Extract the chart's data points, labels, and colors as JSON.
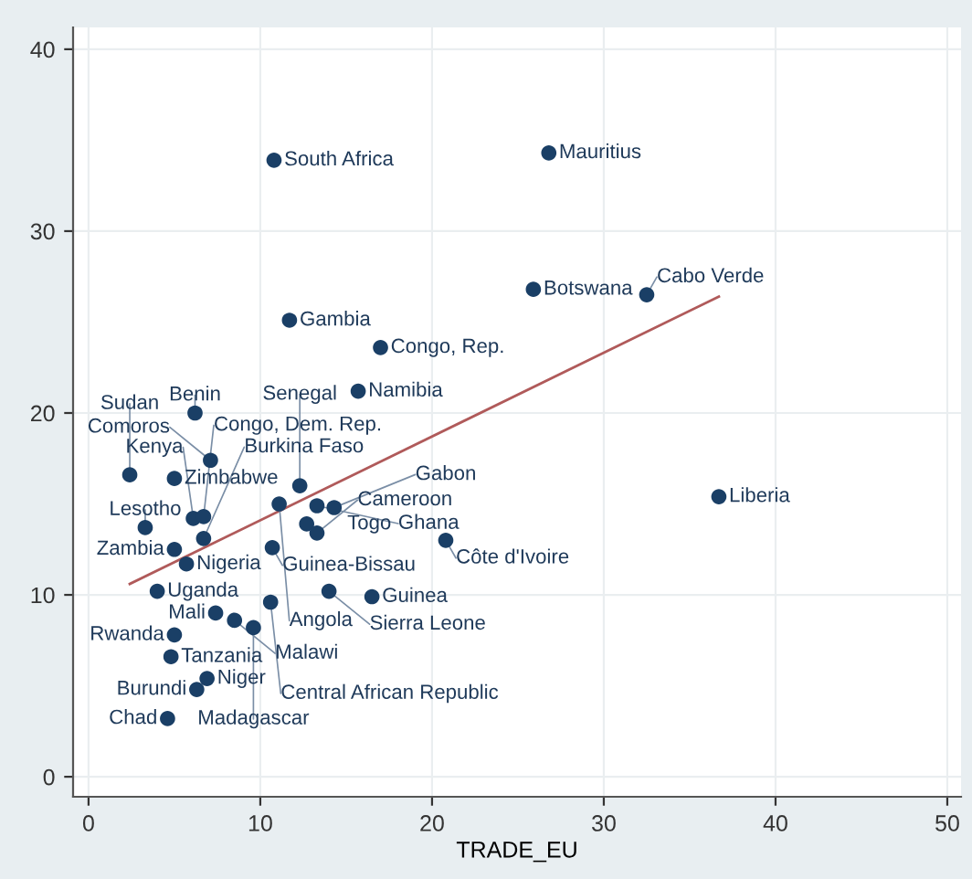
{
  "chart_data": {
    "type": "scatter",
    "xlabel": "TRADE_EU",
    "xlim": [
      -0.9,
      50.8
    ],
    "ylim": [
      -1.1,
      41.2
    ],
    "xticks": [
      0,
      10,
      20,
      30,
      40,
      50
    ],
    "yticks": [
      0,
      10,
      20,
      30,
      40
    ],
    "grid": true,
    "marker": "circle",
    "series": [
      {
        "color": "#1a3f66",
        "x": [
          10.8,
          26.8,
          25.9,
          32.5,
          11.7,
          17.0,
          15.7,
          6.2,
          7.1,
          2.4,
          5.0,
          12.3,
          36.7,
          20.8,
          3.3,
          5.0,
          5.7,
          4.0,
          10.7,
          11.1,
          13.3,
          14.3,
          6.1,
          6.7,
          6.7,
          12.7,
          13.3,
          7.4,
          8.5,
          9.6,
          10.6,
          14.0,
          16.5,
          5.0,
          4.8,
          6.9,
          6.3,
          4.6
        ],
        "values": [
          33.9,
          34.3,
          26.8,
          26.5,
          25.1,
          23.6,
          21.2,
          20.0,
          17.4,
          16.6,
          16.4,
          16.0,
          15.4,
          13.0,
          13.7,
          12.5,
          11.7,
          10.2,
          12.6,
          15.0,
          14.9,
          14.8,
          14.2,
          14.3,
          13.1,
          13.9,
          13.4,
          9.0,
          8.6,
          8.2,
          9.6,
          10.2,
          9.9,
          7.8,
          6.6,
          5.4,
          4.8,
          3.2
        ]
      },
      {
        "color": "#b05a5a",
        "type": "line",
        "marker": "none",
        "x": [
          2.4,
          36.7
        ],
        "values": [
          10.6,
          26.4
        ]
      }
    ],
    "annotations": [
      {
        "text": "South Africa",
        "x": 10.8,
        "y": 33.9
      },
      {
        "text": "Mauritius",
        "x": 26.8,
        "y": 34.3
      },
      {
        "text": "Botswana",
        "x": 25.9,
        "y": 26.8
      },
      {
        "text": "Cabo Verde",
        "x": 32.5,
        "y": 26.5
      },
      {
        "text": "Gambia",
        "x": 11.7,
        "y": 25.1
      },
      {
        "text": "Congo, Rep.",
        "x": 17.0,
        "y": 23.6
      },
      {
        "text": "Namibia",
        "x": 15.7,
        "y": 21.2
      },
      {
        "text": "Benin",
        "x": 6.2,
        "y": 20.0
      },
      {
        "text": "Comoros",
        "x": 7.1,
        "y": 17.4
      },
      {
        "text": "Sudan",
        "x": 2.4,
        "y": 16.6
      },
      {
        "text": "Zimbabwe",
        "x": 5.0,
        "y": 16.4
      },
      {
        "text": "Senegal",
        "x": 12.3,
        "y": 16.0
      },
      {
        "text": "Liberia",
        "x": 36.7,
        "y": 15.4
      },
      {
        "text": "Côte d'Ivoire",
        "x": 20.8,
        "y": 13.0
      },
      {
        "text": "Lesotho",
        "x": 3.3,
        "y": 13.7
      },
      {
        "text": "Zambia",
        "x": 5.0,
        "y": 12.5
      },
      {
        "text": "Nigeria",
        "x": 5.7,
        "y": 11.7
      },
      {
        "text": "Uganda",
        "x": 4.0,
        "y": 10.2
      },
      {
        "text": "Guinea-Bissau",
        "x": 10.7,
        "y": 12.6
      },
      {
        "text": "Angola",
        "x": 11.1,
        "y": 15.0
      },
      {
        "text": "Ghana",
        "x": 13.3,
        "y": 14.9
      },
      {
        "text": "Gabon",
        "x": 14.3,
        "y": 14.8
      },
      {
        "text": "Kenya",
        "x": 6.1,
        "y": 14.2
      },
      {
        "text": "Congo, Dem. Rep.",
        "x": 6.7,
        "y": 14.3
      },
      {
        "text": "Burkina Faso",
        "x": 6.7,
        "y": 13.1
      },
      {
        "text": "Togo",
        "x": 12.7,
        "y": 13.9
      },
      {
        "text": "Cameroon",
        "x": 13.3,
        "y": 13.4
      },
      {
        "text": "Mali",
        "x": 7.4,
        "y": 9.0
      },
      {
        "text": "Malawi",
        "x": 8.5,
        "y": 8.6
      },
      {
        "text": "Madagascar",
        "x": 9.6,
        "y": 8.2
      },
      {
        "text": "Central African Republic",
        "x": 10.6,
        "y": 9.6
      },
      {
        "text": "Sierra Leone",
        "x": 14.0,
        "y": 10.2
      },
      {
        "text": "Guinea",
        "x": 16.5,
        "y": 9.9
      },
      {
        "text": "Rwanda",
        "x": 5.0,
        "y": 7.8
      },
      {
        "text": "Tanzania",
        "x": 4.8,
        "y": 6.6
      },
      {
        "text": "Niger",
        "x": 6.9,
        "y": 5.4
      },
      {
        "text": "Burundi",
        "x": 6.3,
        "y": 4.8
      },
      {
        "text": "Chad",
        "x": 4.6,
        "y": 3.2
      }
    ]
  }
}
